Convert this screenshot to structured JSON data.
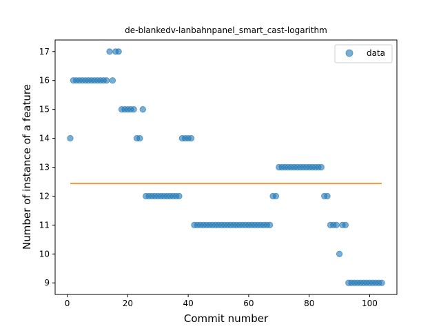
{
  "chart_data": {
    "type": "scatter",
    "title": "de-blankedv-lanbahnpanel_smart_cast-logarithm",
    "xlabel": "Commit number",
    "ylabel": "Number of instance of a feature",
    "xlim": [
      -4,
      109
    ],
    "ylim": [
      8.6,
      17.4
    ],
    "xticks": [
      0,
      20,
      40,
      60,
      80,
      100
    ],
    "yticks": [
      9,
      10,
      11,
      12,
      13,
      14,
      15,
      16,
      17
    ],
    "grid": false,
    "legend": {
      "placement": "top-right",
      "entries": [
        "data"
      ]
    },
    "series": [
      {
        "name": "data",
        "type": "scatter",
        "color": "#1f77b4",
        "x": [
          1,
          2,
          3,
          4,
          5,
          6,
          7,
          8,
          9,
          10,
          11,
          12,
          13,
          14,
          15,
          16,
          17,
          18,
          19,
          20,
          21,
          22,
          23,
          24,
          25,
          26,
          27,
          28,
          29,
          30,
          31,
          32,
          33,
          34,
          35,
          36,
          37,
          38,
          39,
          40,
          41,
          42,
          43,
          44,
          45,
          46,
          47,
          48,
          49,
          50,
          51,
          52,
          53,
          54,
          55,
          56,
          57,
          58,
          59,
          60,
          61,
          62,
          63,
          64,
          65,
          66,
          67,
          68,
          69,
          70,
          71,
          72,
          73,
          74,
          75,
          76,
          77,
          78,
          79,
          80,
          81,
          82,
          83,
          84,
          85,
          86,
          87,
          88,
          89,
          90,
          91,
          92,
          93,
          94,
          95,
          96,
          97,
          98,
          99,
          100,
          101,
          102,
          103,
          104
        ],
        "y": [
          14,
          16,
          16,
          16,
          16,
          16,
          16,
          16,
          16,
          16,
          16,
          16,
          16,
          17,
          16,
          17,
          17,
          15,
          15,
          15,
          15,
          15,
          14,
          14,
          15,
          12,
          12,
          12,
          12,
          12,
          12,
          12,
          12,
          12,
          12,
          12,
          12,
          14,
          14,
          14,
          14,
          11,
          11,
          11,
          11,
          11,
          11,
          11,
          11,
          11,
          11,
          11,
          11,
          11,
          11,
          11,
          11,
          11,
          11,
          11,
          11,
          11,
          11,
          11,
          11,
          11,
          11,
          12,
          12,
          13,
          13,
          13,
          13,
          13,
          13,
          13,
          13,
          13,
          13,
          13,
          13,
          13,
          13,
          13,
          12,
          12,
          11,
          11,
          11,
          10,
          11,
          11,
          9,
          9,
          9,
          9,
          9,
          9,
          9,
          9,
          9,
          9,
          9,
          9
        ]
      },
      {
        "name": "",
        "type": "line",
        "color": "#ff7f0e",
        "x": [
          1,
          104
        ],
        "y": [
          12.44,
          12.44
        ]
      }
    ]
  }
}
